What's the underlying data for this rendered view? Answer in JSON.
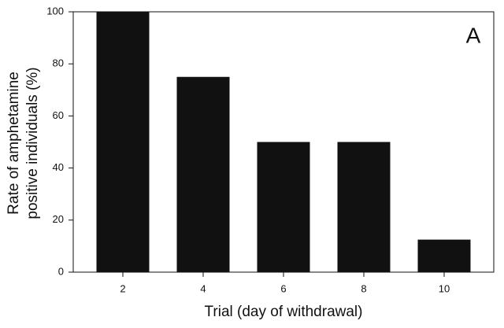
{
  "chart_data": {
    "type": "bar",
    "panel_label": "A",
    "xlabel": "Trial (day of withdrawal)",
    "ylabel": [
      "Rate of amphetamine",
      "positive individuals (%)"
    ],
    "categories": [
      "2",
      "4",
      "6",
      "8",
      "10"
    ],
    "values": [
      100,
      75,
      50,
      50,
      12.5
    ],
    "color": "#111111",
    "ylim": [
      0,
      100
    ],
    "yticks": [
      0,
      20,
      40,
      60,
      80,
      100
    ],
    "grid": false
  }
}
